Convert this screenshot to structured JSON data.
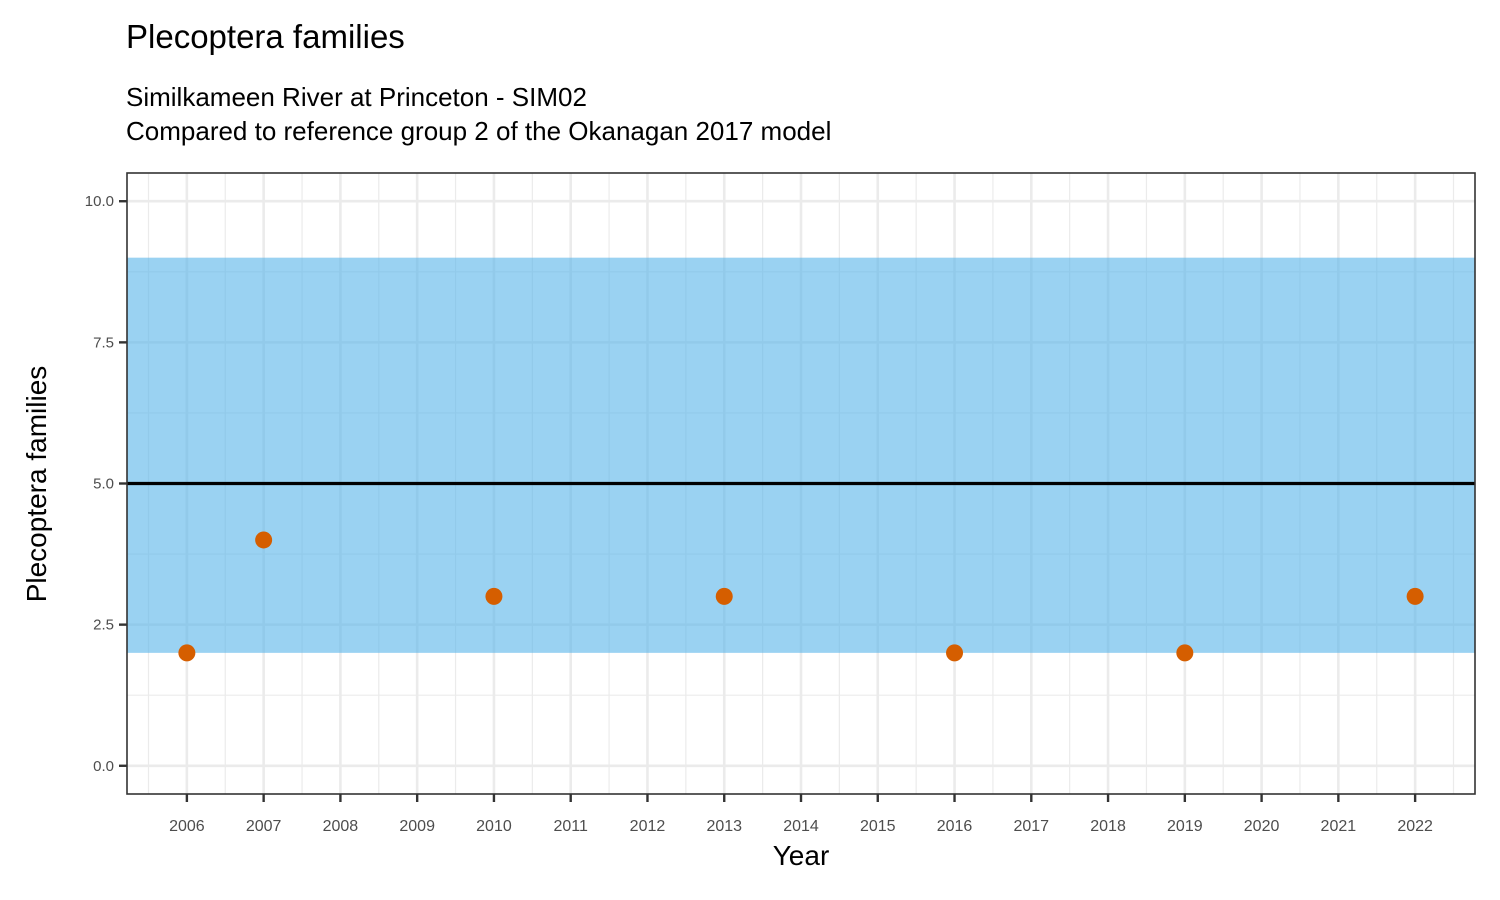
{
  "chart_data": {
    "type": "scatter",
    "title": "Plecoptera families",
    "subtitle_lines": [
      "Similkameen River at Princeton - SIM02",
      "Compared to reference group 2 of the Okanagan 2017 model"
    ],
    "xlabel": "Year",
    "ylabel": "Plecoptera families",
    "x_ticks": [
      "2006",
      "2007",
      "2008",
      "2009",
      "2010",
      "2011",
      "2012",
      "2013",
      "2014",
      "2015",
      "2016",
      "2017",
      "2018",
      "2019",
      "2020",
      "2021",
      "2022"
    ],
    "y_ticks": [
      "0.0",
      "2.5",
      "5.0",
      "7.5",
      "10.0"
    ],
    "xlim": [
      2005.22,
      2022.78
    ],
    "ylim": [
      -0.5,
      10.5
    ],
    "grid": true,
    "reference_band": {
      "ymin": 2,
      "ymax": 9,
      "color": "#56B4E9"
    },
    "reference_line": {
      "y": 5,
      "color": "#000000"
    },
    "point_color": "#D55E00",
    "points": [
      {
        "x": 2006,
        "y": 2
      },
      {
        "x": 2007,
        "y": 4
      },
      {
        "x": 2010,
        "y": 3
      },
      {
        "x": 2013,
        "y": 3
      },
      {
        "x": 2016,
        "y": 2
      },
      {
        "x": 2019,
        "y": 2
      },
      {
        "x": 2022,
        "y": 3
      }
    ]
  }
}
